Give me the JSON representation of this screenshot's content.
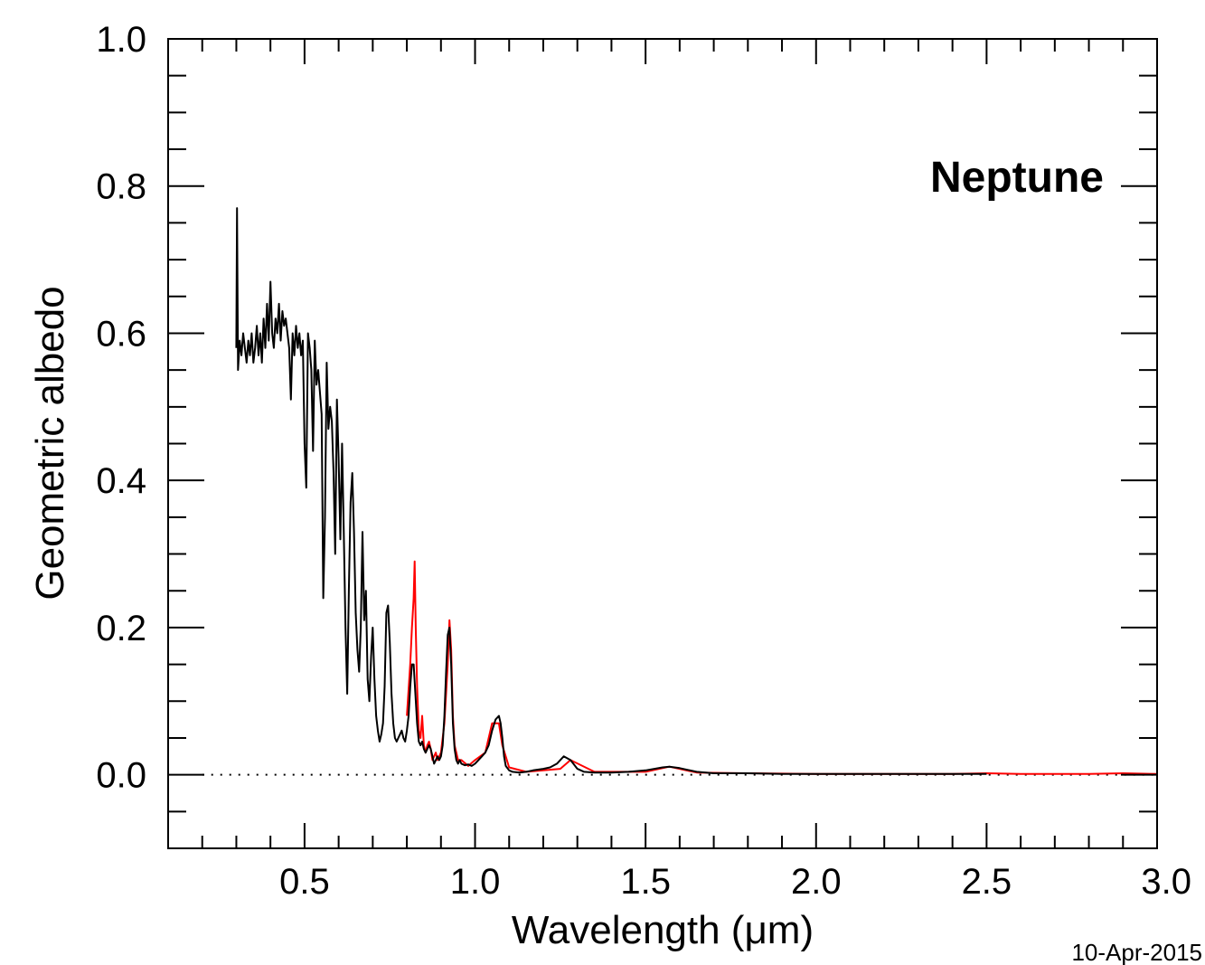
{
  "chart_data": {
    "type": "line",
    "title": "",
    "annotation": "Neptune",
    "xlabel": "Wavelength (μm)",
    "ylabel": "Geometric albedo",
    "xlim": [
      0.1,
      3.0
    ],
    "ylim": [
      -0.1,
      1.0
    ],
    "xticks": [
      0.5,
      1.0,
      1.5,
      2.0,
      2.5,
      3.0
    ],
    "xtick_labels": [
      "0.5",
      "1.0",
      "1.5",
      "2.0",
      "2.5",
      "3.0"
    ],
    "yticks": [
      0.0,
      0.2,
      0.4,
      0.6,
      0.8,
      1.0
    ],
    "ytick_labels": [
      "0.0",
      "0.2",
      "0.4",
      "0.6",
      "0.8",
      "1.0"
    ],
    "x_minor_step": 0.1,
    "y_minor_step": 0.05,
    "zero_line": "dotted",
    "grid": false,
    "legend": "none",
    "date_stamp": "10-Apr-2015",
    "series": [
      {
        "color": "#ff0000",
        "x": [
          0.8,
          0.81,
          0.815,
          0.82,
          0.823,
          0.826,
          0.83,
          0.835,
          0.84,
          0.845,
          0.85,
          0.855,
          0.86,
          0.865,
          0.87,
          0.875,
          0.88,
          0.885,
          0.89,
          0.9,
          0.91,
          0.92,
          0.925,
          0.93,
          0.935,
          0.94,
          0.95,
          0.96,
          0.98,
          1.0,
          1.03,
          1.05,
          1.07,
          1.08,
          1.1,
          1.15,
          1.2,
          1.25,
          1.28,
          1.35,
          1.5,
          1.57,
          1.65,
          1.8,
          2.0,
          2.2,
          2.4,
          2.5,
          2.6,
          2.7,
          2.8,
          2.9,
          3.0
        ],
        "y": [
          0.08,
          0.15,
          0.2,
          0.24,
          0.29,
          0.2,
          0.12,
          0.06,
          0.05,
          0.08,
          0.04,
          0.03,
          0.04,
          0.045,
          0.035,
          0.02,
          0.025,
          0.03,
          0.02,
          0.03,
          0.07,
          0.15,
          0.21,
          0.17,
          0.08,
          0.04,
          0.02,
          0.02,
          0.012,
          0.02,
          0.03,
          0.07,
          0.07,
          0.04,
          0.01,
          0.004,
          0.006,
          0.008,
          0.02,
          0.004,
          0.004,
          0.011,
          0.003,
          0.002,
          0.001,
          0.001,
          0.001,
          0.002,
          0.001,
          0.001,
          0.001,
          0.002,
          0.001
        ]
      },
      {
        "color": "#000000",
        "x": [
          0.3,
          0.302,
          0.305,
          0.31,
          0.315,
          0.32,
          0.325,
          0.33,
          0.335,
          0.34,
          0.345,
          0.35,
          0.355,
          0.36,
          0.365,
          0.37,
          0.375,
          0.38,
          0.385,
          0.39,
          0.395,
          0.4,
          0.405,
          0.41,
          0.415,
          0.42,
          0.425,
          0.43,
          0.435,
          0.44,
          0.445,
          0.45,
          0.455,
          0.46,
          0.465,
          0.47,
          0.475,
          0.48,
          0.485,
          0.49,
          0.495,
          0.5,
          0.505,
          0.51,
          0.515,
          0.52,
          0.525,
          0.53,
          0.535,
          0.54,
          0.545,
          0.55,
          0.555,
          0.56,
          0.565,
          0.57,
          0.575,
          0.58,
          0.585,
          0.59,
          0.595,
          0.6,
          0.605,
          0.61,
          0.615,
          0.62,
          0.625,
          0.63,
          0.635,
          0.64,
          0.645,
          0.65,
          0.655,
          0.66,
          0.665,
          0.67,
          0.675,
          0.68,
          0.685,
          0.69,
          0.695,
          0.7,
          0.705,
          0.71,
          0.715,
          0.72,
          0.725,
          0.73,
          0.735,
          0.74,
          0.745,
          0.75,
          0.755,
          0.76,
          0.765,
          0.77,
          0.775,
          0.78,
          0.785,
          0.79,
          0.795,
          0.8,
          0.805,
          0.81,
          0.815,
          0.82,
          0.825,
          0.83,
          0.835,
          0.84,
          0.845,
          0.85,
          0.855,
          0.86,
          0.865,
          0.87,
          0.875,
          0.88,
          0.885,
          0.89,
          0.895,
          0.9,
          0.905,
          0.91,
          0.915,
          0.92,
          0.925,
          0.93,
          0.935,
          0.94,
          0.945,
          0.95,
          0.955,
          0.96,
          0.97,
          0.98,
          0.99,
          1.0,
          1.01,
          1.02,
          1.03,
          1.04,
          1.05,
          1.06,
          1.07,
          1.075,
          1.08,
          1.085,
          1.09,
          1.1,
          1.11,
          1.13,
          1.15,
          1.17,
          1.2,
          1.22,
          1.24,
          1.26,
          1.28,
          1.3,
          1.32,
          1.35,
          1.4,
          1.45,
          1.5,
          1.55,
          1.57,
          1.6,
          1.65,
          1.7,
          1.8,
          1.9,
          2.0,
          2.2,
          2.4,
          2.5
        ],
        "y": [
          0.58,
          0.77,
          0.55,
          0.59,
          0.57,
          0.6,
          0.58,
          0.56,
          0.59,
          0.57,
          0.6,
          0.56,
          0.58,
          0.61,
          0.57,
          0.6,
          0.56,
          0.62,
          0.58,
          0.64,
          0.59,
          0.67,
          0.6,
          0.58,
          0.62,
          0.6,
          0.64,
          0.59,
          0.63,
          0.61,
          0.62,
          0.6,
          0.58,
          0.51,
          0.6,
          0.57,
          0.61,
          0.58,
          0.6,
          0.57,
          0.59,
          0.45,
          0.39,
          0.6,
          0.58,
          0.55,
          0.44,
          0.59,
          0.53,
          0.55,
          0.52,
          0.49,
          0.24,
          0.35,
          0.56,
          0.47,
          0.5,
          0.48,
          0.41,
          0.3,
          0.51,
          0.43,
          0.32,
          0.45,
          0.33,
          0.2,
          0.11,
          0.25,
          0.37,
          0.41,
          0.33,
          0.22,
          0.17,
          0.14,
          0.2,
          0.33,
          0.21,
          0.25,
          0.13,
          0.1,
          0.16,
          0.2,
          0.13,
          0.08,
          0.06,
          0.045,
          0.055,
          0.07,
          0.12,
          0.22,
          0.23,
          0.18,
          0.11,
          0.07,
          0.05,
          0.045,
          0.05,
          0.055,
          0.06,
          0.05,
          0.045,
          0.06,
          0.08,
          0.12,
          0.15,
          0.15,
          0.11,
          0.07,
          0.045,
          0.04,
          0.045,
          0.035,
          0.03,
          0.035,
          0.04,
          0.035,
          0.025,
          0.015,
          0.02,
          0.025,
          0.02,
          0.025,
          0.04,
          0.08,
          0.14,
          0.19,
          0.2,
          0.15,
          0.07,
          0.035,
          0.02,
          0.015,
          0.02,
          0.015,
          0.013,
          0.014,
          0.012,
          0.015,
          0.02,
          0.025,
          0.03,
          0.04,
          0.06,
          0.075,
          0.08,
          0.07,
          0.05,
          0.025,
          0.012,
          0.006,
          0.004,
          0.003,
          0.004,
          0.006,
          0.008,
          0.01,
          0.015,
          0.025,
          0.02,
          0.008,
          0.004,
          0.003,
          0.003,
          0.004,
          0.006,
          0.01,
          0.011,
          0.009,
          0.004,
          0.002,
          0.002,
          0.001,
          0.001,
          0.001,
          0.001,
          0.001
        ]
      }
    ]
  }
}
